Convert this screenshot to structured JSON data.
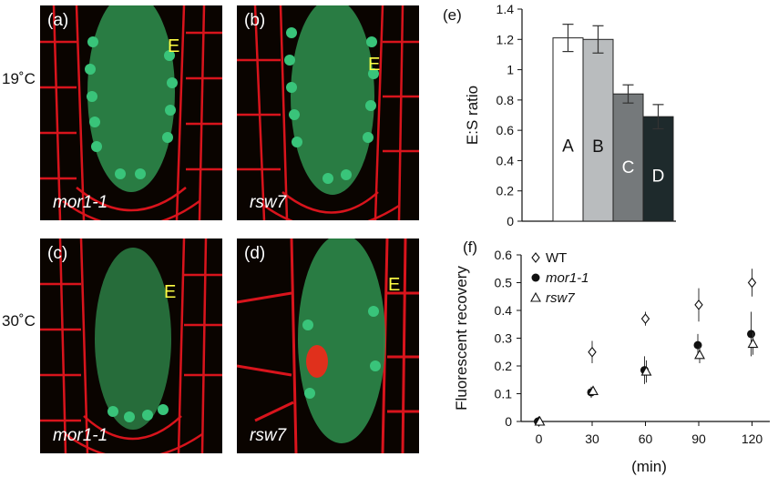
{
  "row_labels": {
    "top": "19˚C",
    "bottom": "30˚C"
  },
  "panels": [
    {
      "letter": "(a)",
      "genotype": "mor1-1",
      "marker": "E"
    },
    {
      "letter": "(b)",
      "genotype": "rsw7",
      "marker": "E"
    },
    {
      "letter": "(c)",
      "genotype": "mor1-1",
      "marker": "E"
    },
    {
      "letter": "(d)",
      "genotype": "rsw7",
      "marker": "E"
    }
  ],
  "chart_e_label": "(e)",
  "chart_f_label": "(f)",
  "chart_data": [
    {
      "type": "bar",
      "panel": "(e)",
      "categories": [
        "A",
        "B",
        "C",
        "D"
      ],
      "values": [
        1.21,
        1.2,
        0.84,
        0.69
      ],
      "errors": [
        0.09,
        0.09,
        0.06,
        0.08
      ],
      "colors": [
        "#ffffff",
        "#b9bcbe",
        "#75797b",
        "#1e2a2c"
      ],
      "label_colors": [
        "#111111",
        "#111111",
        "#ffffff",
        "#ffffff"
      ],
      "ylabel": "E:S ratio",
      "ylim": [
        0,
        1.4
      ],
      "yticks": [
        0,
        0.2,
        0.4,
        0.6,
        0.8,
        1,
        1.2,
        1.4
      ],
      "ytick_labels": [
        "0",
        "0.2",
        "0.4",
        "0.6",
        "0.8",
        "1",
        "1.2",
        "1.4"
      ],
      "grid": false
    },
    {
      "type": "scatter",
      "panel": "(f)",
      "x": [
        0,
        30,
        60,
        90,
        120
      ],
      "xlabel": "(min)",
      "ylabel": "Fluorescent recovery",
      "xlim": [
        -10,
        130
      ],
      "ylim": [
        0,
        0.6
      ],
      "xticks": [
        0,
        30,
        60,
        90,
        120
      ],
      "yticks": [
        0,
        0.1,
        0.2,
        0.3,
        0.4,
        0.5,
        0.6
      ],
      "ytick_labels": [
        "0",
        "0.1",
        "0.2",
        "0.3",
        "0.4",
        "0.5",
        "0.6"
      ],
      "legend_position": "top-left",
      "series": [
        {
          "name": "WT",
          "marker": "diamond",
          "italic": false,
          "values": [
            0,
            0.25,
            0.37,
            0.42,
            0.5
          ],
          "errors": [
            0.005,
            0.04,
            0.025,
            0.06,
            0.05
          ]
        },
        {
          "name": "mor1-1",
          "marker": "circle",
          "italic": true,
          "values": [
            0,
            0.105,
            0.185,
            0.275,
            0.315
          ],
          "errors": [
            0.005,
            0.02,
            0.05,
            0.04,
            0.08
          ]
        },
        {
          "name": "rsw7",
          "marker": "triangle",
          "italic": true,
          "values": [
            0,
            0.11,
            0.18,
            0.24,
            0.28
          ],
          "errors": [
            0.005,
            0.015,
            0.04,
            0.03,
            0.04
          ]
        }
      ]
    }
  ]
}
